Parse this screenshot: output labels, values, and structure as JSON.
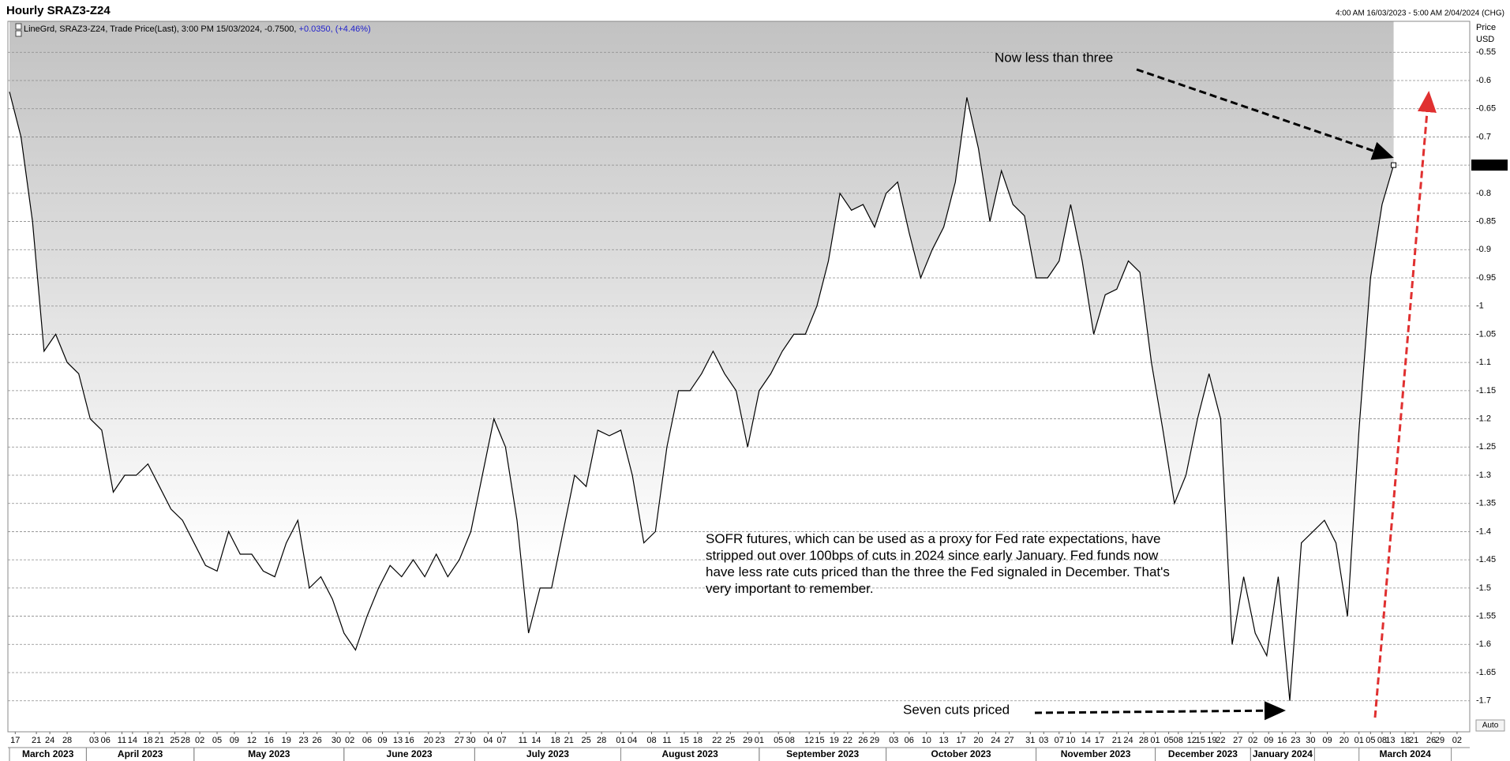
{
  "chart_data": {
    "type": "line",
    "title": "Hourly SRAZ3-Z24",
    "date_range": "4:00 AM 16/03/2023 - 5:00 AM 2/04/2024 (CHG)",
    "legend": {
      "text": "LineGrd, SRAZ3-Z24, Trade Price(Last), 3:00 PM 15/03/2024, -0.7500,",
      "change": "+0.0350, (+4.46%)"
    },
    "y_axis_label": "Price",
    "y_axis_unit": "USD",
    "auto_button": "Auto",
    "last_price": {
      "value": -0.75,
      "label": "-0.7500"
    },
    "annotations": {
      "now_less": "Now less than three",
      "seven_cuts": "Seven cuts priced",
      "note": "SOFR futures, which can be used as a proxy for Fed rate expectations, have stripped out over 100bps of cuts in 2024 since early January. Fed funds now have less rate cuts priced than the three the Fed signaled in December. That's very important to remember."
    },
    "x": [
      "2023-03-16",
      "2023-03-18",
      "2023-03-20",
      "2023-03-23",
      "2023-03-25",
      "2023-03-28",
      "2023-03-30",
      "2023-04-02",
      "2023-04-05",
      "2023-04-08",
      "2023-04-12",
      "2023-04-15",
      "2023-04-18",
      "2023-04-21",
      "2023-04-24",
      "2023-04-27",
      "2023-05-01",
      "2023-05-03",
      "2023-05-05",
      "2023-05-08",
      "2023-05-10",
      "2023-05-12",
      "2023-05-15",
      "2023-05-17",
      "2023-05-19",
      "2023-05-22",
      "2023-05-24",
      "2023-05-27",
      "2023-05-29",
      "2023-06-01",
      "2023-06-03",
      "2023-06-06",
      "2023-06-08",
      "2023-06-11",
      "2023-06-14",
      "2023-06-17",
      "2023-06-19",
      "2023-06-22",
      "2023-06-25",
      "2023-06-27",
      "2023-06-30",
      "2023-07-03",
      "2023-07-05",
      "2023-07-08",
      "2023-07-10",
      "2023-07-12",
      "2023-07-15",
      "2023-07-17",
      "2023-07-20",
      "2023-07-22",
      "2023-07-25",
      "2023-07-27",
      "2023-07-30",
      "2023-08-01",
      "2023-08-04",
      "2023-08-06",
      "2023-08-09",
      "2023-08-11",
      "2023-08-14",
      "2023-08-16",
      "2023-08-19",
      "2023-08-21",
      "2023-08-24",
      "2023-08-26",
      "2023-08-29",
      "2023-09-01",
      "2023-09-03",
      "2023-09-06",
      "2023-09-09",
      "2023-09-11",
      "2023-09-14",
      "2023-09-18",
      "2023-09-20",
      "2023-09-23",
      "2023-09-26",
      "2023-09-29",
      "2023-10-01",
      "2023-10-04",
      "2023-10-06",
      "2023-10-09",
      "2023-10-11",
      "2023-10-13",
      "2023-10-16",
      "2023-10-18",
      "2023-10-20",
      "2023-10-23",
      "2023-10-25",
      "2023-10-28",
      "2023-10-30",
      "2023-11-01",
      "2023-11-04",
      "2023-11-07",
      "2023-11-10",
      "2023-11-13",
      "2023-11-16",
      "2023-11-18",
      "2023-11-21",
      "2023-11-24",
      "2023-11-27",
      "2023-11-30",
      "2023-12-03",
      "2023-12-07",
      "2023-12-10",
      "2023-12-14",
      "2023-12-18",
      "2023-12-22",
      "2023-12-25",
      "2023-12-29",
      "2024-01-03",
      "2024-01-08",
      "2024-01-14",
      "2024-01-20",
      "2024-01-26",
      "2024-01-31",
      "2024-02-07",
      "2024-02-15",
      "2024-02-22",
      "2024-03-01",
      "2024-03-05",
      "2024-03-08",
      "2024-03-15",
      "2024-03-18",
      "2024-03-22",
      "2024-03-25",
      "2024-03-29",
      "2024-04-01",
      "2024-04-03"
    ],
    "series": [
      {
        "name": "SRAZ3-Z24",
        "color": "#000000",
        "values": [
          -0.62,
          -0.7,
          -0.85,
          -1.08,
          -1.05,
          -1.1,
          -1.12,
          -1.2,
          -1.22,
          -1.33,
          -1.3,
          -1.3,
          -1.28,
          -1.32,
          -1.36,
          -1.38,
          -1.42,
          -1.46,
          -1.47,
          -1.4,
          -1.44,
          -1.44,
          -1.47,
          -1.48,
          -1.42,
          -1.38,
          -1.5,
          -1.48,
          -1.52,
          -1.58,
          -1.61,
          -1.55,
          -1.5,
          -1.46,
          -1.48,
          -1.45,
          -1.48,
          -1.44,
          -1.48,
          -1.45,
          -1.4,
          -1.3,
          -1.2,
          -1.25,
          -1.38,
          -1.58,
          -1.5,
          -1.5,
          -1.4,
          -1.3,
          -1.32,
          -1.22,
          -1.23,
          -1.22,
          -1.3,
          -1.42,
          -1.4,
          -1.25,
          -1.15,
          -1.15,
          -1.12,
          -1.08,
          -1.12,
          -1.15,
          -1.25,
          -1.15,
          -1.12,
          -1.08,
          -1.05,
          -1.05,
          -1,
          -0.92,
          -0.8,
          -0.83,
          -0.82,
          -0.86,
          -0.8,
          -0.78,
          -0.87,
          -0.95,
          -0.9,
          -0.86,
          -0.78,
          -0.63,
          -0.72,
          -0.85,
          -0.76,
          -0.82,
          -0.84,
          -0.95,
          -0.95,
          -0.92,
          -0.82,
          -0.92,
          -1.05,
          -0.98,
          -0.97,
          -0.92,
          -0.94,
          -1.1,
          -1.22,
          -1.35,
          -1.3,
          -1.2,
          -1.12,
          -1.2,
          -1.6,
          -1.48,
          -1.58,
          -1.62,
          -1.48,
          -1.7,
          -1.42,
          -1.4,
          -1.38,
          -1.42,
          -1.55,
          -1.22,
          -0.95,
          -0.82,
          -0.75,
          null,
          null,
          null,
          null,
          null,
          null
        ]
      }
    ],
    "ylim": [
      -1.755,
      -0.495
    ],
    "yticks": [
      -0.55,
      -0.6,
      -0.65,
      -0.7,
      -0.75,
      -0.8,
      -0.85,
      -0.9,
      -0.95,
      -1,
      -1.05,
      -1.1,
      -1.15,
      -1.2,
      -1.25,
      -1.3,
      -1.35,
      -1.4,
      -1.45,
      -1.5,
      -1.55,
      -1.6,
      -1.65,
      -1.7
    ],
    "grid": true,
    "xticks": [
      {
        "value": "2023-03-17",
        "label": "17"
      },
      {
        "value": "2023-03-21",
        "label": "21"
      },
      {
        "value": "2023-03-24",
        "label": "24"
      },
      {
        "value": "2023-03-28",
        "label": "28"
      },
      {
        "value": "2023-04-03",
        "label": "03"
      },
      {
        "value": "2023-04-06",
        "label": "06"
      },
      {
        "value": "2023-04-11",
        "label": "11"
      },
      {
        "value": "2023-04-14",
        "label": "14"
      },
      {
        "value": "2023-04-18",
        "label": "18"
      },
      {
        "value": "2023-04-21",
        "label": "21"
      },
      {
        "value": "2023-04-25",
        "label": "25"
      },
      {
        "value": "2023-04-28",
        "label": "28"
      },
      {
        "value": "2023-05-02",
        "label": "02"
      },
      {
        "value": "2023-05-05",
        "label": "05"
      },
      {
        "value": "2023-05-09",
        "label": "09"
      },
      {
        "value": "2023-05-12",
        "label": "12"
      },
      {
        "value": "2023-05-16",
        "label": "16"
      },
      {
        "value": "2023-05-19",
        "label": "19"
      },
      {
        "value": "2023-05-23",
        "label": "23"
      },
      {
        "value": "2023-05-26",
        "label": "26"
      },
      {
        "value": "2023-05-30",
        "label": "30"
      },
      {
        "value": "2023-06-02",
        "label": "02"
      },
      {
        "value": "2023-06-06",
        "label": "06"
      },
      {
        "value": "2023-06-09",
        "label": "09"
      },
      {
        "value": "2023-06-13",
        "label": "13"
      },
      {
        "value": "2023-06-16",
        "label": "16"
      },
      {
        "value": "2023-06-20",
        "label": "20"
      },
      {
        "value": "2023-06-23",
        "label": "23"
      },
      {
        "value": "2023-06-27",
        "label": "27"
      },
      {
        "value": "2023-06-30",
        "label": "30"
      },
      {
        "value": "2023-07-04",
        "label": "04"
      },
      {
        "value": "2023-07-07",
        "label": "07"
      },
      {
        "value": "2023-07-11",
        "label": "11"
      },
      {
        "value": "2023-07-14",
        "label": "14"
      },
      {
        "value": "2023-07-18",
        "label": "18"
      },
      {
        "value": "2023-07-21",
        "label": "21"
      },
      {
        "value": "2023-07-25",
        "label": "25"
      },
      {
        "value": "2023-07-28",
        "label": "28"
      },
      {
        "value": "2023-08-01",
        "label": "01"
      },
      {
        "value": "2023-08-04",
        "label": "04"
      },
      {
        "value": "2023-08-08",
        "label": "08"
      },
      {
        "value": "2023-08-11",
        "label": "11"
      },
      {
        "value": "2023-08-15",
        "label": "15"
      },
      {
        "value": "2023-08-18",
        "label": "18"
      },
      {
        "value": "2023-08-22",
        "label": "22"
      },
      {
        "value": "2023-08-25",
        "label": "25"
      },
      {
        "value": "2023-08-29",
        "label": "29"
      },
      {
        "value": "2023-09-01",
        "label": "01"
      },
      {
        "value": "2023-09-05",
        "label": "05"
      },
      {
        "value": "2023-09-08",
        "label": "08"
      },
      {
        "value": "2023-09-12",
        "label": "12"
      },
      {
        "value": "2023-09-15",
        "label": "15"
      },
      {
        "value": "2023-09-19",
        "label": "19"
      },
      {
        "value": "2023-09-22",
        "label": "22"
      },
      {
        "value": "2023-09-26",
        "label": "26"
      },
      {
        "value": "2023-09-29",
        "label": "29"
      },
      {
        "value": "2023-10-03",
        "label": "03"
      },
      {
        "value": "2023-10-06",
        "label": "06"
      },
      {
        "value": "2023-10-10",
        "label": "10"
      },
      {
        "value": "2023-10-13",
        "label": "13"
      },
      {
        "value": "2023-10-17",
        "label": "17"
      },
      {
        "value": "2023-10-20",
        "label": "20"
      },
      {
        "value": "2023-10-24",
        "label": "24"
      },
      {
        "value": "2023-10-27",
        "label": "27"
      },
      {
        "value": "2023-10-31",
        "label": "31"
      },
      {
        "value": "2023-11-03",
        "label": "03"
      },
      {
        "value": "2023-11-07",
        "label": "07"
      },
      {
        "value": "2023-11-10",
        "label": "10"
      },
      {
        "value": "2023-11-14",
        "label": "14"
      },
      {
        "value": "2023-11-17",
        "label": "17"
      },
      {
        "value": "2023-11-21",
        "label": "21"
      },
      {
        "value": "2023-11-24",
        "label": "24"
      },
      {
        "value": "2023-11-28",
        "label": "28"
      },
      {
        "value": "2023-12-01",
        "label": "01"
      },
      {
        "value": "2023-12-05",
        "label": "05"
      },
      {
        "value": "2023-12-08",
        "label": "08"
      },
      {
        "value": "2023-12-12",
        "label": "12"
      },
      {
        "value": "2023-12-15",
        "label": "15"
      },
      {
        "value": "2023-12-19",
        "label": "19"
      },
      {
        "value": "2023-12-22",
        "label": "22"
      },
      {
        "value": "2023-12-27",
        "label": "27"
      },
      {
        "value": "2024-01-02",
        "label": "02"
      },
      {
        "value": "2024-01-09",
        "label": "09"
      },
      {
        "value": "2024-01-16",
        "label": "16"
      },
      {
        "value": "2024-01-23",
        "label": "23"
      },
      {
        "value": "2024-01-30",
        "label": "30"
      },
      {
        "value": "2024-02-09",
        "label": "09"
      },
      {
        "value": "2024-02-20",
        "label": "20"
      },
      {
        "value": "2024-03-01",
        "label": "01"
      },
      {
        "value": "2024-03-05",
        "label": "05"
      },
      {
        "value": "2024-03-08",
        "label": "08"
      },
      {
        "value": "2024-03-13",
        "label": "13"
      },
      {
        "value": "2024-03-18",
        "label": "18"
      },
      {
        "value": "2024-03-21",
        "label": "21"
      },
      {
        "value": "2024-03-26",
        "label": "26"
      },
      {
        "value": "2024-03-29",
        "label": "29"
      },
      {
        "value": "2024-04-02",
        "label": "02"
      }
    ],
    "months": [
      {
        "value": "2023-03",
        "label": "March 2023"
      },
      {
        "value": "2023-04",
        "label": "April 2023"
      },
      {
        "value": "2023-05",
        "label": "May 2023"
      },
      {
        "value": "2023-06",
        "label": "June 2023"
      },
      {
        "value": "2023-07",
        "label": "July 2023"
      },
      {
        "value": "2023-08",
        "label": "August 2023"
      },
      {
        "value": "2023-09",
        "label": "September 2023"
      },
      {
        "value": "2023-10",
        "label": "October 2023"
      },
      {
        "value": "2023-11",
        "label": "November 2023"
      },
      {
        "value": "2023-12",
        "label": "December 2023"
      },
      {
        "value": "2024-01",
        "label": "January 2024"
      },
      {
        "value": "2024-03",
        "label": "March 2024"
      }
    ]
  }
}
